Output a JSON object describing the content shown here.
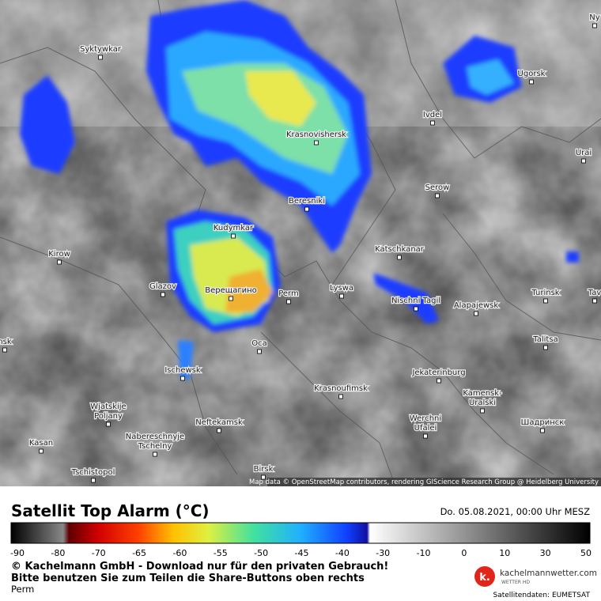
{
  "map": {
    "cities": [
      [
        "Syktywkar"
      ],
      [
        "Krasnovishersk"
      ],
      [
        "Ivdel"
      ],
      [
        "Ugorsk"
      ],
      [
        "Urai"
      ],
      [
        "Serow"
      ],
      [
        "Beresniki"
      ],
      [
        "Kudymkar"
      ],
      [
        "Katschkanar"
      ],
      [
        "Kirow"
      ],
      [
        "Glazov"
      ],
      [
        "Верещагино"
      ],
      [
        "Perm"
      ],
      [
        "Lyswa"
      ],
      [
        "Nischni Tagil"
      ],
      [
        "Alapajewsk"
      ],
      [
        "Turinsk"
      ],
      [
        "Tav"
      ],
      [
        "Oca"
      ],
      [
        "Ischewsk"
      ],
      [
        "nsk"
      ],
      [
        "Jekaterinburg"
      ],
      [
        "Talitsa"
      ],
      [
        "Krasnoufimsk"
      ],
      [
        "Kamensk-",
        "Uralski"
      ],
      [
        "Wjatskije",
        "Poljany"
      ],
      [
        "Neftekamsk"
      ],
      [
        "Werchni",
        "Ufalei"
      ],
      [
        "Шадринск"
      ],
      [
        "Nabereschnyje",
        "Tschelny"
      ],
      [
        "Kasan"
      ],
      [
        "Tschistopol"
      ],
      [
        "Birsk"
      ],
      [
        "Ny"
      ]
    ],
    "attribution": "Map data © OpenStreetMap contributors, rendering GIScience Research Group @ Heidelberg University"
  },
  "legend": {
    "title": "Satellit Top Alarm (°C)",
    "date": "Do. 05.08.2021, 00:00 Uhr MESZ",
    "ticks": [
      -90,
      -80,
      -70,
      -65,
      -60,
      -55,
      -50,
      -45,
      -40,
      -30,
      -10,
      0,
      10,
      30,
      50
    ]
  },
  "footer": {
    "copyright": [
      "© Kachelmann GmbH - Download nur für den privaten Gebrauch!",
      "Bitte benutzen Sie zum Teilen die Share-Buttons oben rechts"
    ],
    "location": "Perm",
    "brand": "kachelmannwetter.com",
    "tagline": "WETTER HD",
    "source": "Satellitendaten: EUMETSAT"
  }
}
